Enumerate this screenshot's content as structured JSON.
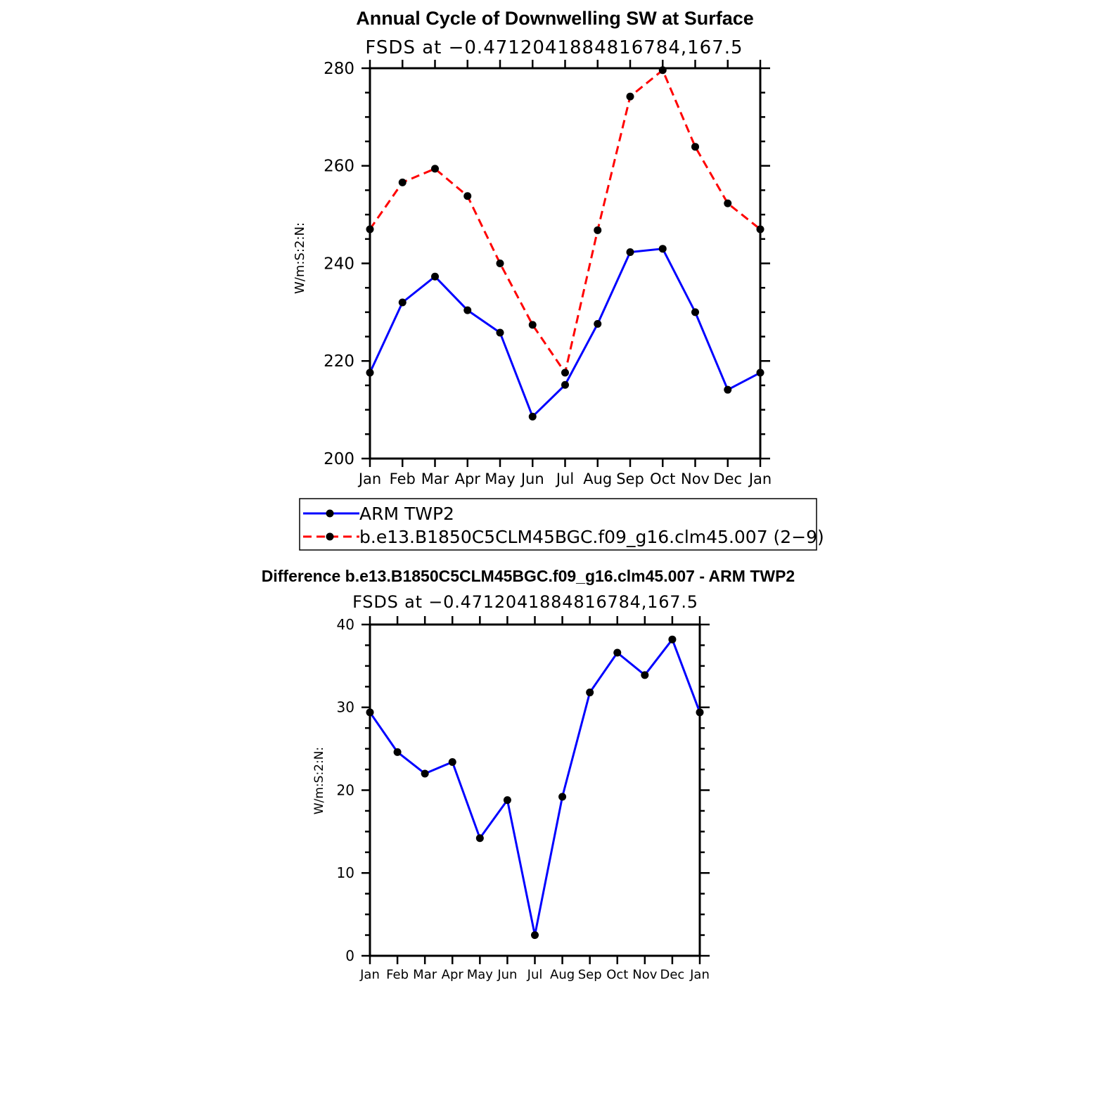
{
  "colors": {
    "obs": "#0000ff",
    "model": "#ff0000",
    "marker": "#000000",
    "axis": "#000000"
  },
  "chart_data": [
    {
      "type": "line",
      "title": "Annual Cycle of Downwelling SW at Surface",
      "subtitle": "FSDS at −0.4712041884816784,167.5",
      "ylabel": "W/m:S:2:N:",
      "xlabel": "",
      "ylim": [
        200,
        280
      ],
      "yticks": [
        "200",
        "220",
        "240",
        "260",
        "280"
      ],
      "categories": [
        "Jan",
        "Feb",
        "Mar",
        "Apr",
        "May",
        "Jun",
        "Jul",
        "Aug",
        "Sep",
        "Oct",
        "Nov",
        "Dec",
        "Jan"
      ],
      "series": [
        {
          "name": "ARM  TWP2",
          "style": "solid",
          "values": [
            217.6,
            232.0,
            237.3,
            230.4,
            225.8,
            208.6,
            215.1,
            227.6,
            242.3,
            243.0,
            230.0,
            214.1,
            217.6
          ]
        },
        {
          "name": "b.e13.B1850C5CLM45BGC.f09_g16.clm45.007 (2−9)",
          "style": "dashed",
          "values": [
            247.0,
            256.6,
            259.4,
            253.8,
            240.0,
            227.4,
            217.6,
            246.8,
            274.2,
            279.6,
            263.9,
            252.3,
            247.0
          ]
        }
      ],
      "legend": [
        "ARM  TWP2",
        "b.e13.B1850C5CLM45BGC.f09_g16.clm45.007 (2−9)"
      ],
      "legend_position": "bottom"
    },
    {
      "type": "line",
      "title": "Difference b.e13.B1850C5CLM45BGC.f09_g16.clm45.007 - ARM TWP2",
      "subtitle": "FSDS at −0.4712041884816784,167.5",
      "ylabel": "W/m:S:2:N:",
      "xlabel": "",
      "ylim": [
        0,
        40
      ],
      "yticks": [
        "0",
        "10",
        "20",
        "30",
        "40"
      ],
      "categories": [
        "Jan",
        "Feb",
        "Mar",
        "Apr",
        "May",
        "Jun",
        "Jul",
        "Aug",
        "Sep",
        "Oct",
        "Nov",
        "Dec",
        "Jan"
      ],
      "series": [
        {
          "name": "Difference",
          "style": "solid",
          "values": [
            29.4,
            24.6,
            22.0,
            23.4,
            14.2,
            18.8,
            2.5,
            19.2,
            31.8,
            36.6,
            33.9,
            38.2,
            29.4
          ]
        }
      ]
    }
  ]
}
